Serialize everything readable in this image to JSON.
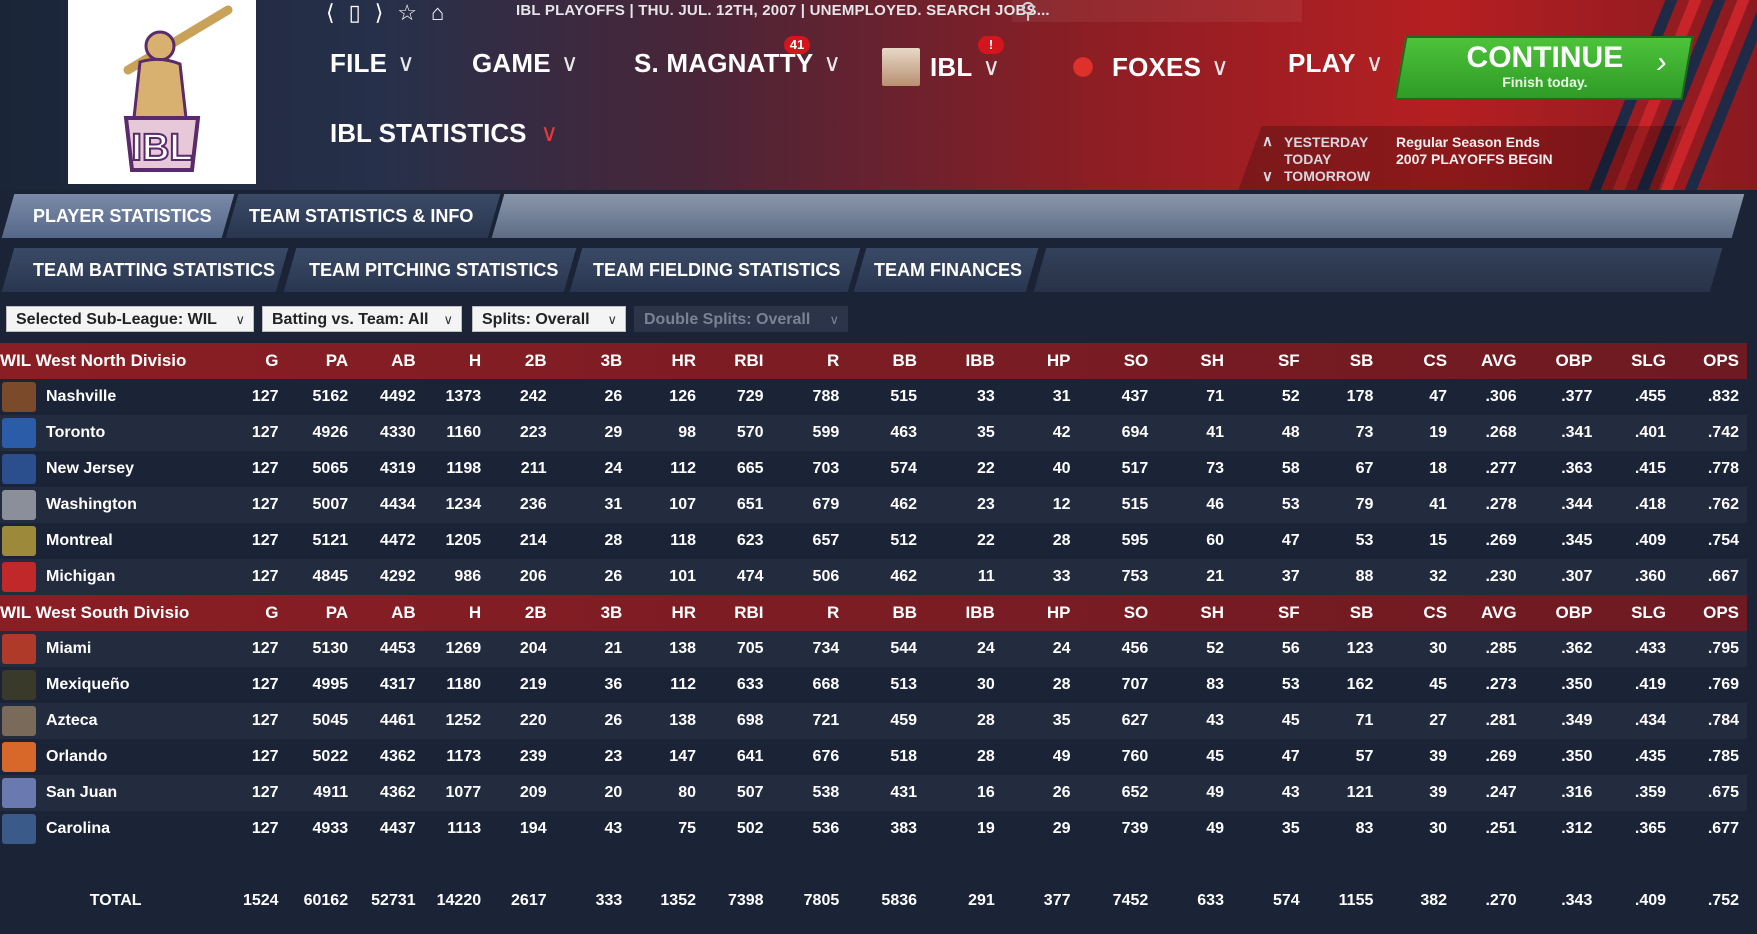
{
  "header": {
    "status": "IBL PLAYOFFS  |  THU. JUL. 12TH, 2007  |  UNEMPLOYED. SEARCH JOBS...",
    "menus": [
      {
        "label": "FILE"
      },
      {
        "label": "GAME"
      },
      {
        "label": "S. MAGNATTY",
        "badge": "41"
      },
      {
        "label": "IBL",
        "badge": "!"
      },
      {
        "label": "FOXES"
      },
      {
        "label": "PLAY"
      }
    ],
    "continue": {
      "title": "CONTINUE",
      "subtitle": "Finish today."
    },
    "page_title": "IBL STATISTICS",
    "dates": [
      "YESTERDAY",
      "TODAY",
      "TOMORROW"
    ],
    "events": [
      "Regular Season Ends",
      "2007 PLAYOFFS BEGIN"
    ]
  },
  "tabs1": [
    "PLAYER STATISTICS",
    "TEAM STATISTICS & INFO"
  ],
  "tabs2": [
    "TEAM BATTING STATISTICS",
    "TEAM PITCHING STATISTICS",
    "TEAM FIELDING STATISTICS",
    "TEAM FINANCES"
  ],
  "filters": {
    "subleague": "Selected Sub-League: WIL",
    "vs_team": "Batting vs. Team: All",
    "splits": "Splits: Overall",
    "double_splits": "Double Splits: Overall"
  },
  "columns": [
    "G",
    "PA",
    "AB",
    "H",
    "2B",
    "3B",
    "HR",
    "RBI",
    "R",
    "BB",
    "IBB",
    "HP",
    "SO",
    "SH",
    "SF",
    "SB",
    "CS",
    "AVG",
    "OBP",
    "SLG",
    "OPS"
  ],
  "divisions": [
    {
      "name": "WIL West North Divisio",
      "teams": [
        {
          "name": "Nashville",
          "color": "#7a4a2a",
          "stats": [
            "127",
            "5162",
            "4492",
            "1373",
            "242",
            "26",
            "126",
            "729",
            "788",
            "515",
            "33",
            "31",
            "437",
            "71",
            "52",
            "178",
            "47",
            ".306",
            ".377",
            ".455",
            ".832"
          ]
        },
        {
          "name": "Toronto",
          "color": "#2a5ca8",
          "stats": [
            "127",
            "4926",
            "4330",
            "1160",
            "223",
            "29",
            "98",
            "570",
            "599",
            "463",
            "35",
            "42",
            "694",
            "41",
            "48",
            "73",
            "19",
            ".268",
            ".341",
            ".401",
            ".742"
          ]
        },
        {
          "name": "New Jersey",
          "color": "#2b4f8c",
          "stats": [
            "127",
            "5065",
            "4319",
            "1198",
            "211",
            "24",
            "112",
            "665",
            "703",
            "574",
            "22",
            "40",
            "517",
            "73",
            "58",
            "67",
            "18",
            ".277",
            ".363",
            ".415",
            ".778"
          ]
        },
        {
          "name": "Washington",
          "color": "#8a8f99",
          "stats": [
            "127",
            "5007",
            "4434",
            "1234",
            "236",
            "31",
            "107",
            "651",
            "679",
            "462",
            "23",
            "12",
            "515",
            "46",
            "53",
            "79",
            "41",
            ".278",
            ".344",
            ".418",
            ".762"
          ]
        },
        {
          "name": "Montreal",
          "color": "#9c8a3a",
          "stats": [
            "127",
            "5121",
            "4472",
            "1205",
            "214",
            "28",
            "118",
            "623",
            "657",
            "512",
            "22",
            "28",
            "595",
            "60",
            "47",
            "53",
            "15",
            ".269",
            ".345",
            ".409",
            ".754"
          ]
        },
        {
          "name": "Michigan",
          "color": "#c0282a",
          "stats": [
            "127",
            "4845",
            "4292",
            "986",
            "206",
            "26",
            "101",
            "474",
            "506",
            "462",
            "11",
            "33",
            "753",
            "21",
            "37",
            "88",
            "32",
            ".230",
            ".307",
            ".360",
            ".667"
          ]
        }
      ]
    },
    {
      "name": "WIL West South Divisio",
      "teams": [
        {
          "name": "Miami",
          "color": "#b03a2a",
          "stats": [
            "127",
            "5130",
            "4453",
            "1269",
            "204",
            "21",
            "138",
            "705",
            "734",
            "544",
            "24",
            "24",
            "456",
            "52",
            "56",
            "123",
            "30",
            ".285",
            ".362",
            ".433",
            ".795"
          ]
        },
        {
          "name": "Mexiqueño",
          "color": "#3a3a2a",
          "stats": [
            "127",
            "4995",
            "4317",
            "1180",
            "219",
            "36",
            "112",
            "633",
            "668",
            "513",
            "30",
            "28",
            "707",
            "83",
            "53",
            "162",
            "45",
            ".273",
            ".350",
            ".419",
            ".769"
          ]
        },
        {
          "name": "Azteca",
          "color": "#7a6a5a",
          "stats": [
            "127",
            "5045",
            "4461",
            "1252",
            "220",
            "26",
            "138",
            "698",
            "721",
            "459",
            "28",
            "35",
            "627",
            "43",
            "45",
            "71",
            "27",
            ".281",
            ".349",
            ".434",
            ".784"
          ]
        },
        {
          "name": "Orlando",
          "color": "#d8682a",
          "stats": [
            "127",
            "5022",
            "4362",
            "1173",
            "239",
            "23",
            "147",
            "641",
            "676",
            "518",
            "28",
            "49",
            "760",
            "45",
            "47",
            "57",
            "39",
            ".269",
            ".350",
            ".435",
            ".785"
          ]
        },
        {
          "name": "San Juan",
          "color": "#6a7ab0",
          "stats": [
            "127",
            "4911",
            "4362",
            "1077",
            "209",
            "20",
            "80",
            "507",
            "538",
            "431",
            "16",
            "26",
            "652",
            "49",
            "43",
            "121",
            "39",
            ".247",
            ".316",
            ".359",
            ".675"
          ]
        },
        {
          "name": "Carolina",
          "color": "#3a5a8a",
          "stats": [
            "127",
            "4933",
            "4437",
            "1113",
            "194",
            "43",
            "75",
            "502",
            "536",
            "383",
            "19",
            "29",
            "739",
            "49",
            "35",
            "83",
            "30",
            ".251",
            ".312",
            ".365",
            ".677"
          ]
        }
      ]
    }
  ],
  "total": {
    "label": "TOTAL",
    "stats": [
      "1524",
      "60162",
      "52731",
      "14220",
      "2617",
      "333",
      "1352",
      "7398",
      "7805",
      "5836",
      "291",
      "377",
      "7452",
      "633",
      "574",
      "1155",
      "382",
      ".270",
      ".343",
      ".409",
      ".752"
    ]
  }
}
